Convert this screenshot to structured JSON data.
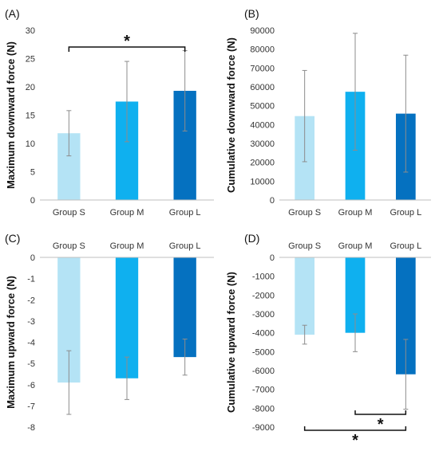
{
  "chart_data": [
    {
      "panel_label": "(A)",
      "type": "bar",
      "ylabel": "Maximum downward force (N)",
      "categories": [
        "Group S",
        "Group M",
        "Group L"
      ],
      "values": [
        11.8,
        17.4,
        19.3
      ],
      "errors": [
        4.0,
        7.1,
        7.1
      ],
      "colors": [
        "#b4e3f5",
        "#0fb0ef",
        "#0571c0"
      ],
      "ylim": [
        0,
        30
      ],
      "yticks": [
        0,
        5,
        10,
        15,
        20,
        25,
        30
      ],
      "category_position": "bottom",
      "significance": [
        {
          "from": 0,
          "to": 2,
          "label": "*",
          "placement": "top"
        }
      ]
    },
    {
      "panel_label": "(B)",
      "type": "bar",
      "ylabel": "Cumulative downward force (N)",
      "categories": [
        "Group S",
        "Group M",
        "Group L"
      ],
      "values": [
        44500,
        57400,
        45800
      ],
      "errors": [
        24200,
        31000,
        31000
      ],
      "colors": [
        "#b4e3f5",
        "#0fb0ef",
        "#0571c0"
      ],
      "ylim": [
        0,
        90000
      ],
      "yticks": [
        0,
        10000,
        20000,
        30000,
        40000,
        50000,
        60000,
        70000,
        80000,
        90000
      ],
      "category_position": "bottom",
      "significance": []
    },
    {
      "panel_label": "(C)",
      "type": "bar",
      "ylabel": "Maximum upward force (N)",
      "categories": [
        "Group S",
        "Group M",
        "Group L"
      ],
      "values": [
        -5.9,
        -5.7,
        -4.7
      ],
      "errors": [
        1.5,
        1.0,
        0.85
      ],
      "colors": [
        "#b4e3f5",
        "#0fb0ef",
        "#0571c0"
      ],
      "ylim": [
        -8,
        0
      ],
      "yticks": [
        -8,
        -7,
        -6,
        -5,
        -4,
        -3,
        -2,
        -1,
        0
      ],
      "category_position": "top",
      "significance": []
    },
    {
      "panel_label": "(D)",
      "type": "bar",
      "ylabel": "Cumulative upward force (N)",
      "categories": [
        "Group S",
        "Group M",
        "Group L"
      ],
      "values": [
        -4100,
        -4000,
        -6200
      ],
      "errors": [
        500,
        1000,
        1850
      ],
      "colors": [
        "#b4e3f5",
        "#0fb0ef",
        "#0571c0"
      ],
      "ylim": [
        -9000,
        0
      ],
      "yticks": [
        -9000,
        -8000,
        -7000,
        -6000,
        -5000,
        -4000,
        -3000,
        -2000,
        -1000,
        0
      ],
      "category_position": "top",
      "significance": [
        {
          "from": 1,
          "to": 2,
          "label": "*",
          "placement": "bottom",
          "level": 1
        },
        {
          "from": 0,
          "to": 2,
          "label": "*",
          "placement": "bottom",
          "level": 2
        }
      ]
    }
  ]
}
